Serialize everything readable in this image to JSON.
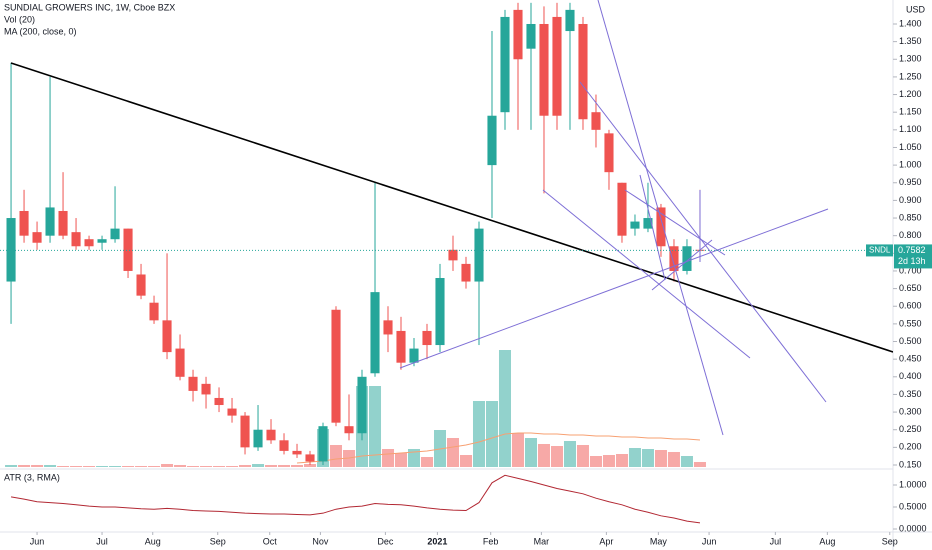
{
  "chart_data": {
    "type": "candlestick",
    "title": "SUNDIAL GROWERS INC, 1W, Cboe BZX",
    "indicators": [
      "Vol (20)",
      "MA (200, close, 0)"
    ],
    "atr_title": "ATR (3, RMA)",
    "currency": "USD",
    "up_color": "#26a69a",
    "down_color": "#ef5350",
    "ma_color": "#f7a072",
    "atr_color": "#b22833",
    "xlim": [
      -0.85,
      67.85
    ],
    "xticks": [
      {
        "value": 2,
        "label": "Jun"
      },
      {
        "value": 7,
        "label": "Jul"
      },
      {
        "value": 10.9,
        "label": "Aug"
      },
      {
        "value": 15.9,
        "label": "Sep"
      },
      {
        "value": 19.9,
        "label": "Oct"
      },
      {
        "value": 23.8,
        "label": "Nov"
      },
      {
        "value": 28.8,
        "label": "Dec"
      },
      {
        "value": 32.8,
        "label": "2021"
      },
      {
        "value": 36.9,
        "label": "Feb"
      },
      {
        "value": 40.8,
        "label": "Mar"
      },
      {
        "value": 45.8,
        "label": "Apr"
      },
      {
        "value": 49.8,
        "label": "May"
      },
      {
        "value": 53.7,
        "label": "Jun"
      },
      {
        "value": 58.8,
        "label": "Jul"
      },
      {
        "value": 62.8,
        "label": "Aug"
      },
      {
        "value": 67.6,
        "label": "Sep"
      }
    ],
    "ylim": [
      0.1415,
      1.468
    ],
    "yticks": [
      {
        "value": 0.15,
        "label": "0.150"
      },
      {
        "value": 0.2,
        "label": "0.200"
      },
      {
        "value": 0.25,
        "label": "0.250"
      },
      {
        "value": 0.3,
        "label": "0.300"
      },
      {
        "value": 0.35,
        "label": "0.350"
      },
      {
        "value": 0.4,
        "label": "0.400"
      },
      {
        "value": 0.45,
        "label": "0.450"
      },
      {
        "value": 0.5,
        "label": "0.500"
      },
      {
        "value": 0.55,
        "label": "0.550"
      },
      {
        "value": 0.6,
        "label": "0.600"
      },
      {
        "value": 0.65,
        "label": "0.650"
      },
      {
        "value": 0.7,
        "label": "0.700"
      },
      {
        "value": 0.75,
        "label": "0.750"
      },
      {
        "value": 0.8,
        "label": "0.800"
      },
      {
        "value": 0.85,
        "label": "0.850"
      },
      {
        "value": 0.9,
        "label": "0.900"
      },
      {
        "value": 0.95,
        "label": "0.950"
      },
      {
        "value": 1.0,
        "label": "1.000"
      },
      {
        "value": 1.05,
        "label": "1.050"
      },
      {
        "value": 1.1,
        "label": "1.100"
      },
      {
        "value": 1.15,
        "label": "1.150"
      },
      {
        "value": 1.2,
        "label": "1.200"
      },
      {
        "value": 1.25,
        "label": "1.250"
      },
      {
        "value": 1.3,
        "label": "1.300"
      },
      {
        "value": 1.35,
        "label": "1.350"
      },
      {
        "value": 1.4,
        "label": "1.400"
      }
    ],
    "y2lim": [
      -0.068,
      1.341
    ],
    "y2ticks": [
      {
        "value": 0,
        "label": "0.0000"
      },
      {
        "value": 0.5,
        "label": "0.5000"
      },
      {
        "value": 1,
        "label": "1.0000"
      }
    ],
    "open": [
      0.67,
      0.87,
      0.81,
      0.8,
      0.87,
      0.81,
      0.79,
      0.78,
      0.79,
      0.82,
      0.69,
      0.61,
      0.56,
      0.48,
      0.4,
      0.38,
      0.34,
      0.31,
      0.29,
      0.2,
      0.25,
      0.22,
      0.19,
      0.18,
      0.16,
      0.59,
      0.26,
      0.24,
      0.41,
      0.56,
      0.53,
      0.44,
      0.53,
      0.49,
      0.76,
      0.72,
      0.67,
      1.0,
      1.15,
      1.44,
      1.33,
      1.4,
      1.42,
      1.38,
      1.4,
      1.15,
      1.09,
      0.95,
      0.82,
      0.82,
      0.88,
      0.77,
      0.7,
      0.76
    ],
    "high": [
      1.29,
      0.93,
      0.84,
      1.25,
      0.98,
      0.85,
      0.8,
      0.8,
      0.94,
      0.82,
      0.72,
      0.63,
      0.75,
      0.52,
      0.42,
      0.4,
      0.37,
      0.34,
      0.3,
      0.32,
      0.28,
      0.24,
      0.21,
      0.19,
      0.27,
      0.6,
      0.35,
      0.42,
      0.95,
      0.6,
      0.57,
      0.51,
      0.55,
      0.72,
      0.8,
      0.74,
      0.84,
      1.38,
      1.44,
      1.46,
      1.46,
      1.45,
      1.46,
      1.46,
      1.42,
      1.2,
      1.1,
      0.95,
      0.86,
      0.95,
      0.89,
      0.79,
      0.79,
      0.93
    ],
    "low": [
      0.55,
      0.78,
      0.76,
      0.78,
      0.79,
      0.76,
      0.76,
      0.76,
      0.78,
      0.68,
      0.62,
      0.55,
      0.45,
      0.39,
      0.33,
      0.31,
      0.3,
      0.27,
      0.18,
      0.19,
      0.21,
      0.18,
      0.17,
      0.15,
      0.15,
      0.26,
      0.22,
      0.22,
      0.4,
      0.47,
      0.42,
      0.43,
      0.45,
      0.47,
      0.7,
      0.65,
      0.49,
      0.85,
      1.1,
      1.1,
      1.1,
      0.92,
      1.1,
      1.1,
      1.1,
      1.05,
      0.93,
      0.78,
      0.8,
      0.81,
      0.74,
      0.67,
      0.69,
      0.74
    ],
    "close": [
      0.85,
      0.8,
      0.78,
      0.88,
      0.8,
      0.77,
      0.77,
      0.79,
      0.82,
      0.7,
      0.63,
      0.56,
      0.47,
      0.4,
      0.36,
      0.35,
      0.32,
      0.29,
      0.2,
      0.25,
      0.22,
      0.19,
      0.18,
      0.16,
      0.26,
      0.27,
      0.24,
      0.4,
      0.64,
      0.52,
      0.44,
      0.48,
      0.49,
      0.68,
      0.73,
      0.67,
      0.82,
      1.14,
      1.42,
      1.3,
      1.4,
      1.14,
      1.14,
      1.44,
      1.13,
      1.1,
      0.98,
      0.8,
      0.84,
      0.85,
      0.77,
      0.7,
      0.77,
      0.7582
    ],
    "volume": [
      2,
      2,
      2,
      2,
      1,
      1,
      1,
      1,
      1,
      1,
      1,
      1,
      3,
      2,
      1,
      1,
      1,
      1,
      2,
      3,
      2,
      2,
      2,
      3,
      38,
      22,
      17,
      81,
      81,
      18,
      14,
      18,
      10,
      37,
      29,
      12,
      66,
      66,
      117,
      34,
      29,
      23,
      21,
      26,
      22,
      11,
      12,
      13,
      19,
      18,
      17,
      15,
      11,
      5
    ],
    "volume_ma": [
      null,
      null,
      null,
      null,
      null,
      null,
      null,
      null,
      null,
      null,
      null,
      null,
      null,
      null,
      null,
      null,
      null,
      null,
      null,
      null,
      null,
      null,
      4,
      5,
      6,
      8,
      9,
      11,
      12,
      13,
      14,
      15,
      16,
      18,
      20,
      22,
      25,
      29,
      33,
      34,
      34,
      33,
      33,
      32,
      32,
      31,
      31,
      30,
      30,
      29,
      29,
      28,
      28,
      27
    ],
    "atr": [
      0.73,
      0.68,
      0.62,
      0.6,
      0.58,
      0.55,
      0.52,
      0.5,
      0.5,
      0.48,
      0.46,
      0.45,
      0.47,
      0.45,
      0.42,
      0.41,
      0.4,
      0.38,
      0.36,
      0.35,
      0.34,
      0.34,
      0.33,
      0.32,
      0.36,
      0.45,
      0.5,
      0.52,
      0.58,
      0.56,
      0.55,
      0.52,
      0.48,
      0.45,
      0.43,
      0.42,
      0.6,
      1.05,
      1.22,
      1.15,
      1.08,
      1.0,
      0.92,
      0.86,
      0.8,
      0.7,
      0.62,
      0.55,
      0.45,
      0.38,
      0.3,
      0.25,
      0.18,
      0.14
    ],
    "price_tag": {
      "symbol": "SNDL",
      "value": 0.7582,
      "countdown": "2d 13h"
    }
  }
}
